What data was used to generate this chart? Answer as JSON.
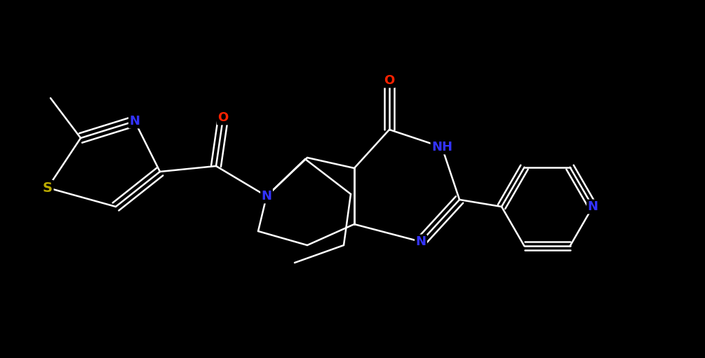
{
  "background_color": "#000000",
  "bond_color": "#ffffff",
  "atom_colors": {
    "N": "#3333ff",
    "NH": "#3333ff",
    "O": "#ff2200",
    "S": "#bbaa00",
    "C": "#ffffff"
  },
  "bond_width": 1.8,
  "font_size_atom": 13,
  "fig_width": 10.05,
  "fig_height": 5.11
}
